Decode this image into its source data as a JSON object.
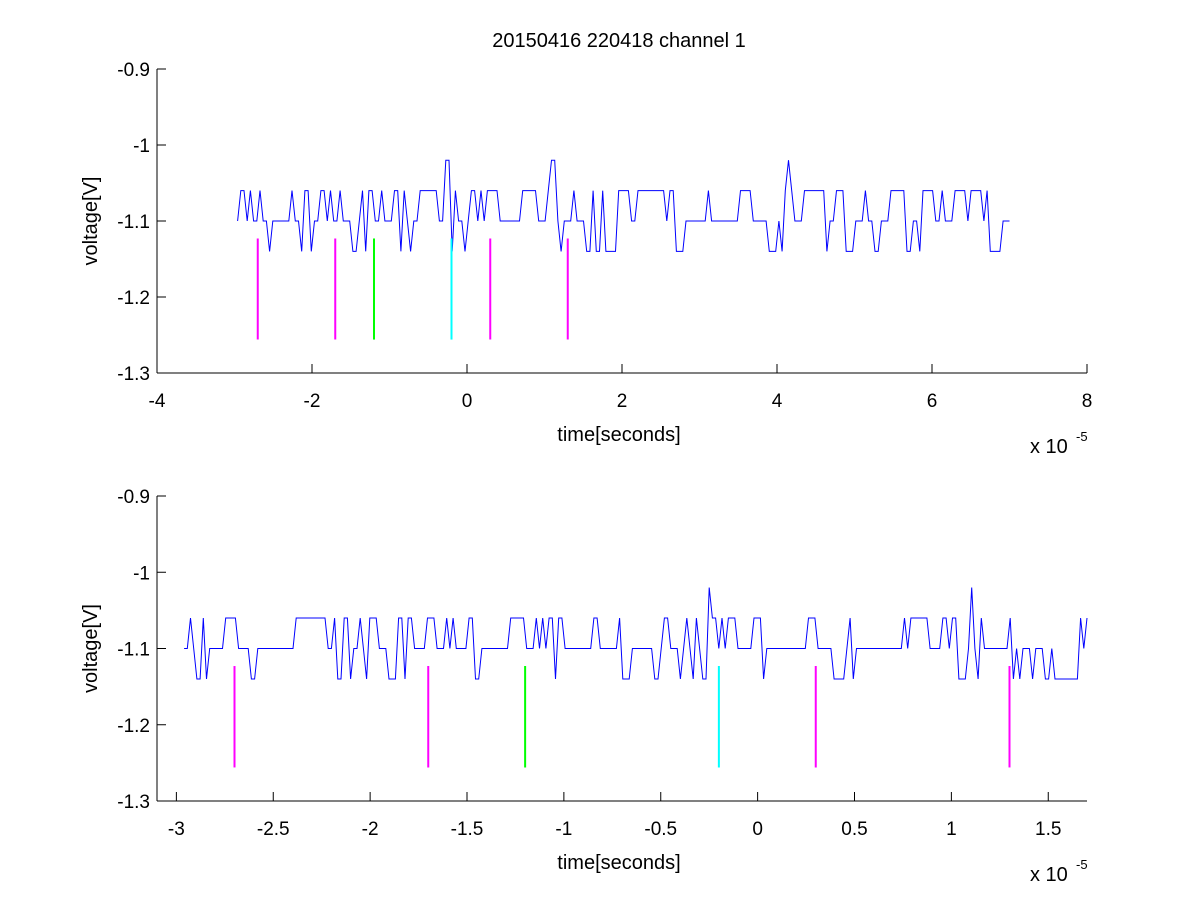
{
  "figure": {
    "title": "20150416 220418 channel 1"
  },
  "chart_data": [
    {
      "type": "line",
      "xlabel": "time[seconds]",
      "ylabel": "voltage[V]",
      "xlim": [
        -4e-05,
        8e-05
      ],
      "ylim": [
        -1.3,
        -0.9
      ],
      "x_multiplier_label": "x 10",
      "x_multiplier_exp": "-5",
      "x_ticks": [
        -4,
        -2,
        0,
        2,
        4,
        6,
        8
      ],
      "x_tick_labels": [
        "-4",
        "-2",
        "0",
        "2",
        "4",
        "6",
        "8"
      ],
      "y_ticks": [
        -1.3,
        -1.2,
        -1.1,
        -1.0,
        -0.9
      ],
      "y_tick_labels": [
        "-1.3",
        "-1.2",
        "-1.1",
        "-1",
        "-0.9"
      ],
      "grid": false,
      "series": [
        {
          "color": "#0000ff",
          "x_start": -2.96e-05,
          "x_end": 7e-05,
          "baseline": -1.1,
          "levels": [
            -1.14,
            -1.1,
            -1.06
          ],
          "spikes": [
            {
              "x": -2.5e-06,
              "y": -1.02
            },
            {
              "x": 1.1e-05,
              "y": -1.02
            },
            {
              "x": 4.15e-05,
              "y": -1.02
            }
          ]
        }
      ],
      "markers": [
        {
          "x": -2.7e-05,
          "y_top": -1.123,
          "y_bottom": -1.256,
          "color": "#ff00ff"
        },
        {
          "x": -1.7e-05,
          "y_top": -1.123,
          "y_bottom": -1.256,
          "color": "#ff00ff"
        },
        {
          "x": -1.2e-05,
          "y_top": -1.123,
          "y_bottom": -1.256,
          "color": "#00ff00"
        },
        {
          "x": -2e-06,
          "y_top": -1.123,
          "y_bottom": -1.256,
          "color": "#00ffff"
        },
        {
          "x": 3e-06,
          "y_top": -1.123,
          "y_bottom": -1.256,
          "color": "#ff00ff"
        },
        {
          "x": 1.3e-05,
          "y_top": -1.123,
          "y_bottom": -1.256,
          "color": "#ff00ff"
        }
      ]
    },
    {
      "type": "line",
      "xlabel": "time[seconds]",
      "ylabel": "voltage[V]",
      "xlim": [
        -3.1e-05,
        1.7e-05
      ],
      "ylim": [
        -1.3,
        -0.9
      ],
      "x_multiplier_label": "x 10",
      "x_multiplier_exp": "-5",
      "x_ticks": [
        -3,
        -2.5,
        -2,
        -1.5,
        -1,
        -0.5,
        0,
        0.5,
        1,
        1.5
      ],
      "x_tick_labels": [
        "-3",
        "-2.5",
        "-2",
        "-1.5",
        "-1",
        "-0.5",
        "0",
        "0.5",
        "1",
        "1.5"
      ],
      "y_ticks": [
        -1.3,
        -1.2,
        -1.1,
        -1.0,
        -0.9
      ],
      "y_tick_labels": [
        "-1.3",
        "-1.2",
        "-1.1",
        "-1",
        "-0.9"
      ],
      "grid": false,
      "series": [
        {
          "color": "#0000ff",
          "x_start": -2.96e-05,
          "x_end": 1.7e-05,
          "baseline": -1.1,
          "levels": [
            -1.14,
            -1.1,
            -1.06
          ],
          "spikes": [
            {
              "x": -2.5e-06,
              "y": -1.02
            },
            {
              "x": 1.1e-05,
              "y": -1.02
            }
          ]
        }
      ],
      "markers": [
        {
          "x": -2.7e-05,
          "y_top": -1.123,
          "y_bottom": -1.256,
          "color": "#ff00ff"
        },
        {
          "x": -1.7e-05,
          "y_top": -1.123,
          "y_bottom": -1.256,
          "color": "#ff00ff"
        },
        {
          "x": -1.2e-05,
          "y_top": -1.123,
          "y_bottom": -1.256,
          "color": "#00ff00"
        },
        {
          "x": -2e-06,
          "y_top": -1.123,
          "y_bottom": -1.256,
          "color": "#00ffff"
        },
        {
          "x": 3e-06,
          "y_top": -1.123,
          "y_bottom": -1.256,
          "color": "#ff00ff"
        },
        {
          "x": 1.3e-05,
          "y_top": -1.123,
          "y_bottom": -1.256,
          "color": "#ff00ff"
        }
      ]
    }
  ]
}
